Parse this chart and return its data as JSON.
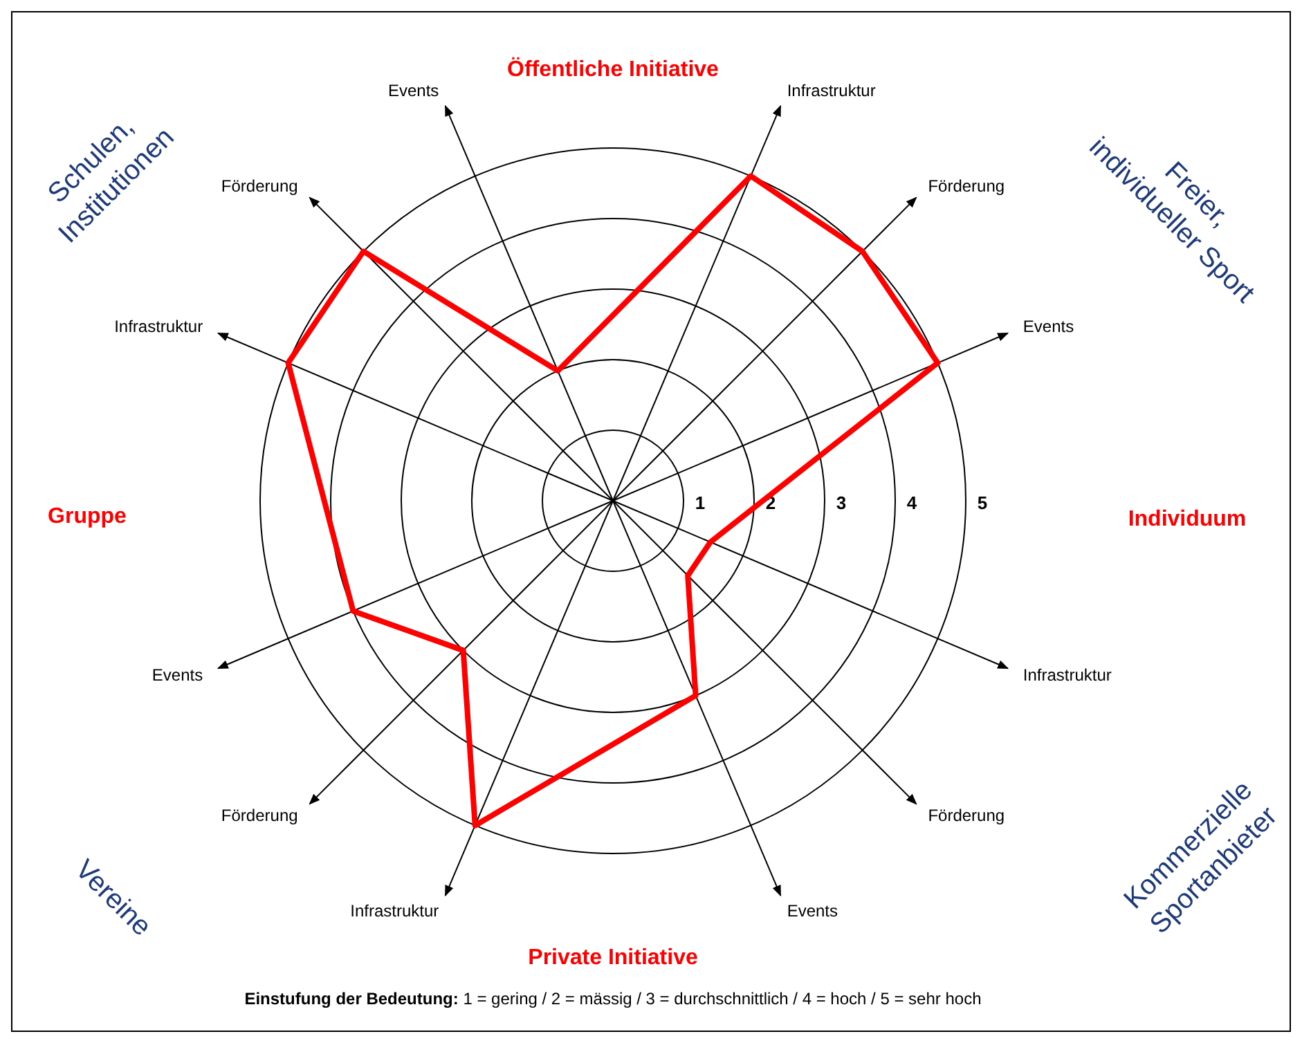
{
  "chart_data": {
    "type": "radar",
    "categories": [
      "Events",
      "Infrastruktur",
      "Förderung",
      "Events",
      "Infrastruktur",
      "Förderung",
      "Events",
      "Infrastruktur",
      "Förderung",
      "Events",
      "Infrastruktur",
      "Förderung"
    ],
    "series": [
      {
        "color": "#ff0000",
        "values": [
          2,
          5,
          5,
          5,
          1.5,
          1.5,
          3,
          5,
          3,
          4,
          5,
          5
        ]
      }
    ],
    "ylim": [
      0,
      5
    ],
    "yticks": [
      1,
      2,
      3,
      4,
      5
    ],
    "grid": true,
    "annotations": [
      "Öffentliche Initiative",
      "Individuum",
      "Private Initiative",
      "Gruppe",
      "Schulen, Institutionen",
      "Freier, individueller Sport",
      "Kommerzielle Sportanbieter",
      "Vereine",
      "Einstufung der Bedeutung: 1 = gering / 2 = mässig / 3 = durchschnittlich / 4 = hoch / 5 = sehr hoch"
    ]
  }
}
